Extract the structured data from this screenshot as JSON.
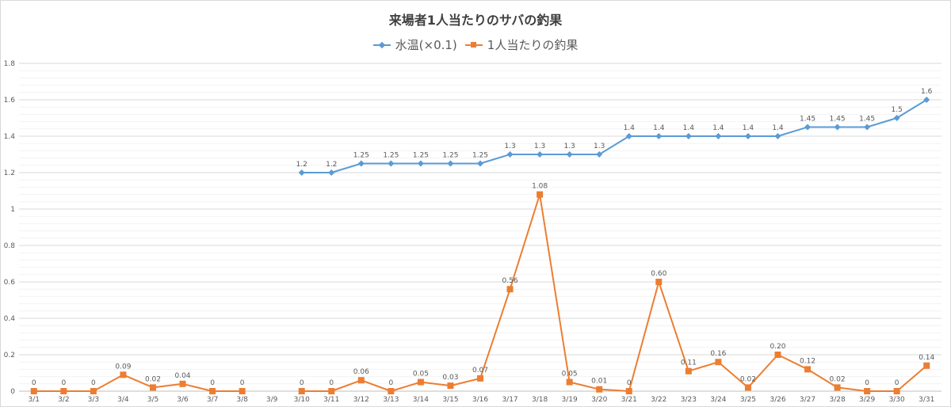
{
  "chart_data": {
    "type": "line",
    "title": "来場者1人当たりのサバの釣果",
    "xlabel": "",
    "ylabel": "",
    "ylim": [
      0,
      1.8
    ],
    "y_major_step": 0.2,
    "y_minor_step": 0.04,
    "y_ticks": [
      "0",
      "0.2",
      "0.4",
      "0.6",
      "0.8",
      "1",
      "1.2",
      "1.4",
      "1.6",
      "1.8"
    ],
    "grid": true,
    "legend_position": "top",
    "categories": [
      "3/1",
      "3/2",
      "3/3",
      "3/4",
      "3/5",
      "3/6",
      "3/7",
      "3/8",
      "3/9",
      "3/10",
      "3/11",
      "3/12",
      "3/13",
      "3/14",
      "3/15",
      "3/16",
      "3/17",
      "3/18",
      "3/19",
      "3/20",
      "3/21",
      "3/22",
      "3/23",
      "3/24",
      "3/25",
      "3/26",
      "3/27",
      "3/28",
      "3/29",
      "3/30",
      "3/31"
    ],
    "series": [
      {
        "name": "水温(×0.1)",
        "color": "#5B9BD5",
        "marker": "diamond",
        "values": [
          null,
          null,
          null,
          null,
          null,
          null,
          null,
          null,
          null,
          1.2,
          1.2,
          1.25,
          1.25,
          1.25,
          1.25,
          1.25,
          1.3,
          1.3,
          1.3,
          1.3,
          1.4,
          1.4,
          1.4,
          1.4,
          1.4,
          1.4,
          1.45,
          1.45,
          1.45,
          1.5,
          1.6
        ],
        "labels": [
          null,
          null,
          null,
          null,
          null,
          null,
          null,
          null,
          null,
          "1.2",
          "1.2",
          "1.25",
          "1.25",
          "1.25",
          "1.25",
          "1.25",
          "1.3",
          "1.3",
          "1.3",
          "1.3",
          "1.4",
          "1.4",
          "1.4",
          "1.4",
          "1.4",
          "1.4",
          "1.45",
          "1.45",
          "1.45",
          "1.5",
          "1.6"
        ]
      },
      {
        "name": "1人当たりの釣果",
        "color": "#ED7D31",
        "marker": "square",
        "values": [
          0,
          0,
          0,
          0.09,
          0.02,
          0.04,
          0,
          0,
          null,
          0,
          0,
          0.06,
          0,
          0.05,
          0.03,
          0.07,
          0.56,
          1.08,
          0.05,
          0.01,
          0,
          0.6,
          0.11,
          0.16,
          0.02,
          0.2,
          0.12,
          0.02,
          0,
          0,
          0.14
        ],
        "labels": [
          "0",
          "0",
          "0",
          "0.09",
          "0.02",
          "0.04",
          "0",
          "0",
          null,
          "0",
          "0",
          "0.06",
          "0",
          "0.05",
          "0.03",
          "0.07",
          "0.56",
          "1.08",
          "0.05",
          "0.01",
          "0",
          "0.60",
          "0.11",
          "0.16",
          "0.02",
          "0.20",
          "0.12",
          "0.02",
          "0",
          "0",
          "0.14"
        ]
      }
    ]
  },
  "legend": {
    "items": [
      {
        "label": "水温(×0.1)",
        "color": "#5B9BD5"
      },
      {
        "label": "1人当たりの釣果",
        "color": "#ED7D31"
      }
    ]
  }
}
